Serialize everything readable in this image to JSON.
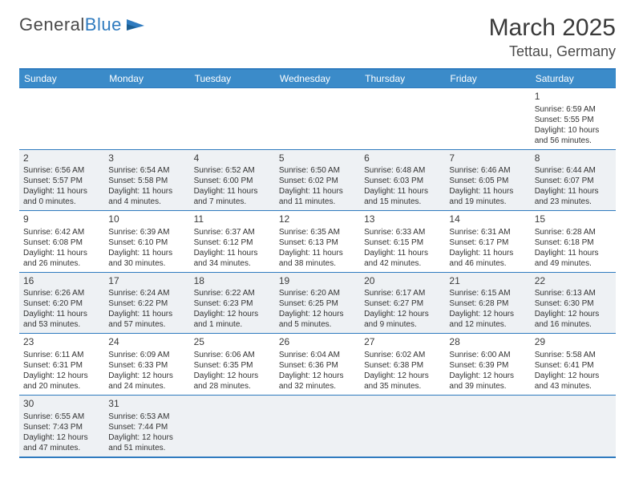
{
  "brand": {
    "name_a": "General",
    "name_b": "Blue"
  },
  "header": {
    "month_title": "March 2025",
    "location": "Tettau, Germany"
  },
  "colors": {
    "header_bg": "#3b8bc9",
    "header_text": "#ffffff",
    "border": "#2f7bbf",
    "row_alt_bg": "#eef1f4",
    "text": "#333333",
    "brand_gray": "#4a4a4a",
    "brand_blue": "#2f7bbf"
  },
  "typography": {
    "month_title_size": 30,
    "location_size": 18,
    "dayhead_size": 12,
    "cell_size": 10,
    "daynum_size": 12
  },
  "calendar": {
    "days": [
      "Sunday",
      "Monday",
      "Tuesday",
      "Wednesday",
      "Thursday",
      "Friday",
      "Saturday"
    ],
    "weeks": [
      [
        null,
        null,
        null,
        null,
        null,
        null,
        {
          "n": "1",
          "sunrise": "Sunrise: 6:59 AM",
          "sunset": "Sunset: 5:55 PM",
          "day": "Daylight: 10 hours and 56 minutes."
        }
      ],
      [
        {
          "n": "2",
          "sunrise": "Sunrise: 6:56 AM",
          "sunset": "Sunset: 5:57 PM",
          "day": "Daylight: 11 hours and 0 minutes."
        },
        {
          "n": "3",
          "sunrise": "Sunrise: 6:54 AM",
          "sunset": "Sunset: 5:58 PM",
          "day": "Daylight: 11 hours and 4 minutes."
        },
        {
          "n": "4",
          "sunrise": "Sunrise: 6:52 AM",
          "sunset": "Sunset: 6:00 PM",
          "day": "Daylight: 11 hours and 7 minutes."
        },
        {
          "n": "5",
          "sunrise": "Sunrise: 6:50 AM",
          "sunset": "Sunset: 6:02 PM",
          "day": "Daylight: 11 hours and 11 minutes."
        },
        {
          "n": "6",
          "sunrise": "Sunrise: 6:48 AM",
          "sunset": "Sunset: 6:03 PM",
          "day": "Daylight: 11 hours and 15 minutes."
        },
        {
          "n": "7",
          "sunrise": "Sunrise: 6:46 AM",
          "sunset": "Sunset: 6:05 PM",
          "day": "Daylight: 11 hours and 19 minutes."
        },
        {
          "n": "8",
          "sunrise": "Sunrise: 6:44 AM",
          "sunset": "Sunset: 6:07 PM",
          "day": "Daylight: 11 hours and 23 minutes."
        }
      ],
      [
        {
          "n": "9",
          "sunrise": "Sunrise: 6:42 AM",
          "sunset": "Sunset: 6:08 PM",
          "day": "Daylight: 11 hours and 26 minutes."
        },
        {
          "n": "10",
          "sunrise": "Sunrise: 6:39 AM",
          "sunset": "Sunset: 6:10 PM",
          "day": "Daylight: 11 hours and 30 minutes."
        },
        {
          "n": "11",
          "sunrise": "Sunrise: 6:37 AM",
          "sunset": "Sunset: 6:12 PM",
          "day": "Daylight: 11 hours and 34 minutes."
        },
        {
          "n": "12",
          "sunrise": "Sunrise: 6:35 AM",
          "sunset": "Sunset: 6:13 PM",
          "day": "Daylight: 11 hours and 38 minutes."
        },
        {
          "n": "13",
          "sunrise": "Sunrise: 6:33 AM",
          "sunset": "Sunset: 6:15 PM",
          "day": "Daylight: 11 hours and 42 minutes."
        },
        {
          "n": "14",
          "sunrise": "Sunrise: 6:31 AM",
          "sunset": "Sunset: 6:17 PM",
          "day": "Daylight: 11 hours and 46 minutes."
        },
        {
          "n": "15",
          "sunrise": "Sunrise: 6:28 AM",
          "sunset": "Sunset: 6:18 PM",
          "day": "Daylight: 11 hours and 49 minutes."
        }
      ],
      [
        {
          "n": "16",
          "sunrise": "Sunrise: 6:26 AM",
          "sunset": "Sunset: 6:20 PM",
          "day": "Daylight: 11 hours and 53 minutes."
        },
        {
          "n": "17",
          "sunrise": "Sunrise: 6:24 AM",
          "sunset": "Sunset: 6:22 PM",
          "day": "Daylight: 11 hours and 57 minutes."
        },
        {
          "n": "18",
          "sunrise": "Sunrise: 6:22 AM",
          "sunset": "Sunset: 6:23 PM",
          "day": "Daylight: 12 hours and 1 minute."
        },
        {
          "n": "19",
          "sunrise": "Sunrise: 6:20 AM",
          "sunset": "Sunset: 6:25 PM",
          "day": "Daylight: 12 hours and 5 minutes."
        },
        {
          "n": "20",
          "sunrise": "Sunrise: 6:17 AM",
          "sunset": "Sunset: 6:27 PM",
          "day": "Daylight: 12 hours and 9 minutes."
        },
        {
          "n": "21",
          "sunrise": "Sunrise: 6:15 AM",
          "sunset": "Sunset: 6:28 PM",
          "day": "Daylight: 12 hours and 12 minutes."
        },
        {
          "n": "22",
          "sunrise": "Sunrise: 6:13 AM",
          "sunset": "Sunset: 6:30 PM",
          "day": "Daylight: 12 hours and 16 minutes."
        }
      ],
      [
        {
          "n": "23",
          "sunrise": "Sunrise: 6:11 AM",
          "sunset": "Sunset: 6:31 PM",
          "day": "Daylight: 12 hours and 20 minutes."
        },
        {
          "n": "24",
          "sunrise": "Sunrise: 6:09 AM",
          "sunset": "Sunset: 6:33 PM",
          "day": "Daylight: 12 hours and 24 minutes."
        },
        {
          "n": "25",
          "sunrise": "Sunrise: 6:06 AM",
          "sunset": "Sunset: 6:35 PM",
          "day": "Daylight: 12 hours and 28 minutes."
        },
        {
          "n": "26",
          "sunrise": "Sunrise: 6:04 AM",
          "sunset": "Sunset: 6:36 PM",
          "day": "Daylight: 12 hours and 32 minutes."
        },
        {
          "n": "27",
          "sunrise": "Sunrise: 6:02 AM",
          "sunset": "Sunset: 6:38 PM",
          "day": "Daylight: 12 hours and 35 minutes."
        },
        {
          "n": "28",
          "sunrise": "Sunrise: 6:00 AM",
          "sunset": "Sunset: 6:39 PM",
          "day": "Daylight: 12 hours and 39 minutes."
        },
        {
          "n": "29",
          "sunrise": "Sunrise: 5:58 AM",
          "sunset": "Sunset: 6:41 PM",
          "day": "Daylight: 12 hours and 43 minutes."
        }
      ],
      [
        {
          "n": "30",
          "sunrise": "Sunrise: 6:55 AM",
          "sunset": "Sunset: 7:43 PM",
          "day": "Daylight: 12 hours and 47 minutes."
        },
        {
          "n": "31",
          "sunrise": "Sunrise: 6:53 AM",
          "sunset": "Sunset: 7:44 PM",
          "day": "Daylight: 12 hours and 51 minutes."
        },
        null,
        null,
        null,
        null,
        null
      ]
    ]
  }
}
